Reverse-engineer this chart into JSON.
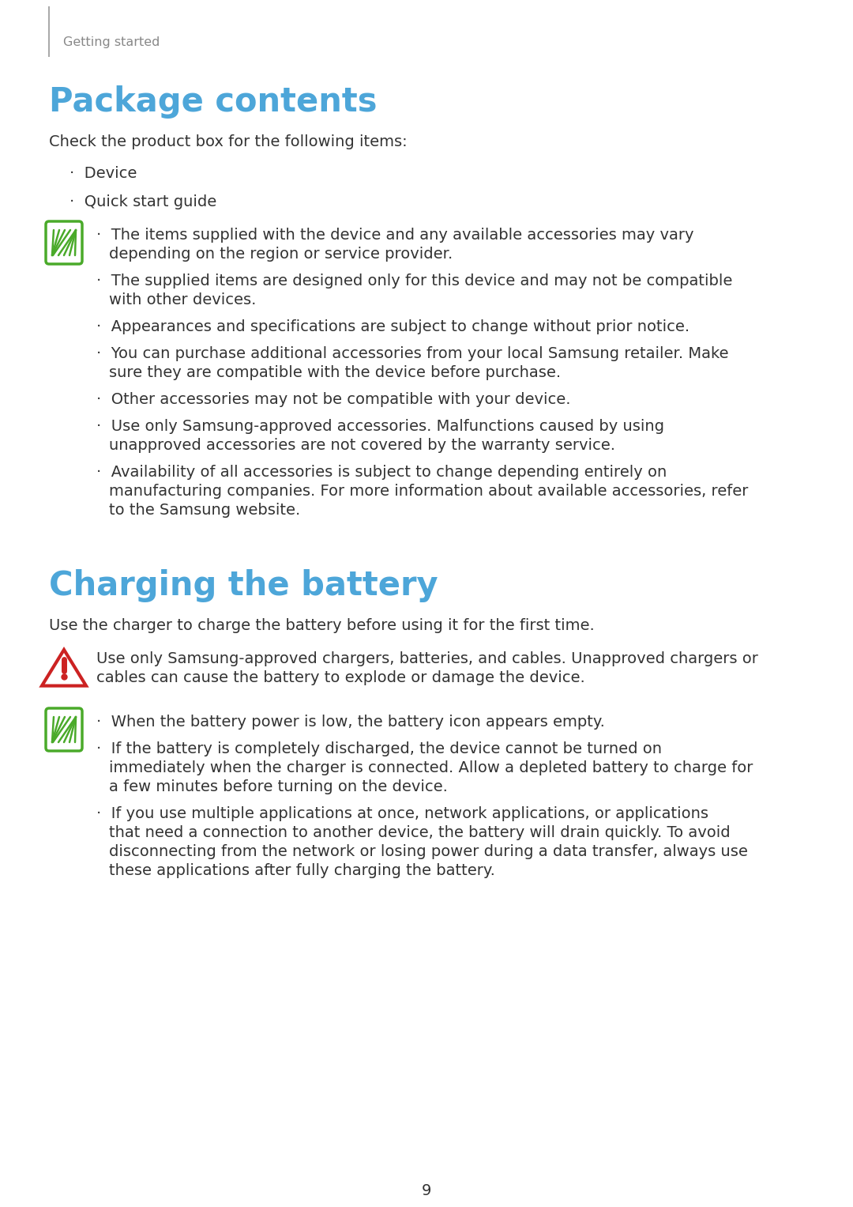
{
  "bg_color": "#ffffff",
  "page_num": "9",
  "header_text": "Getting started",
  "header_line_color": "#999999",
  "section1_title": "Package contents",
  "section1_title_color": "#4da6d9",
  "section1_intro": "Check the product box for the following items:",
  "section1_bullets": [
    "Device",
    "Quick start guide"
  ],
  "section1_note_icon_color": "#4aaa2a",
  "section1_notes": [
    "The items supplied with the device and any available accessories may vary\ndepending on the region or service provider.",
    "The supplied items are designed only for this device and may not be compatible\nwith other devices.",
    "Appearances and specifications are subject to change without prior notice.",
    "You can purchase additional accessories from your local Samsung retailer. Make\nsure they are compatible with the device before purchase.",
    "Other accessories may not be compatible with your device.",
    "Use only Samsung-approved accessories. Malfunctions caused by using\nunapproved accessories are not covered by the warranty service.",
    "Availability of all accessories is subject to change depending entirely on\nmanufacturing companies. For more information about available accessories, refer\nto the Samsung website."
  ],
  "section2_title": "Charging the battery",
  "section2_title_color": "#4da6d9",
  "section2_intro": "Use the charger to charge the battery before using it for the first time.",
  "section2_warning_icon_color": "#cc2222",
  "section2_warning": "Use only Samsung-approved chargers, batteries, and cables. Unapproved chargers or\ncables can cause the battery to explode or damage the device.",
  "section2_note_icon_color": "#4aaa2a",
  "section2_notes": [
    "When the battery power is low, the battery icon appears empty.",
    "If the battery is completely discharged, the device cannot be turned on\nimmediately when the charger is connected. Allow a depleted battery to charge for\na few minutes before turning on the device.",
    "If you use multiple applications at once, network applications, or applications\nthat need a connection to another device, the battery will drain quickly. To avoid\ndisconnecting from the network or losing power during a data transfer, always use\nthese applications after fully charging the battery."
  ],
  "text_color": "#333333",
  "body_fontsize": 14.0,
  "title_fontsize": 30,
  "header_fontsize": 11.5
}
